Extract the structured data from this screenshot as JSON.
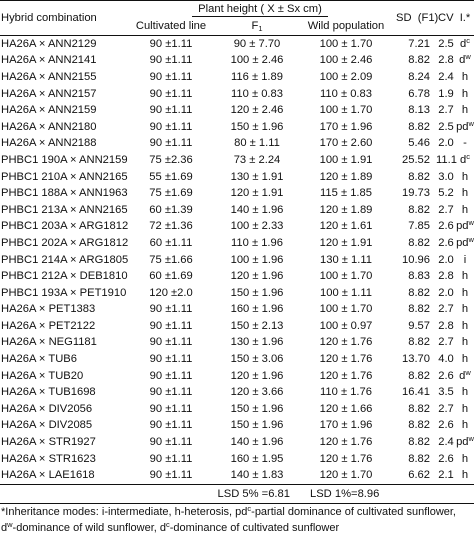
{
  "header": {
    "hybrid_combination": "Hybrid combination",
    "plant_height": "Plant  height ( X ± Sx cm)",
    "cultivated_line": "Cultivated  line",
    "f1_base": "F",
    "f1_sub": "1",
    "wild_population": "Wild  population",
    "sd": "SD",
    "sd_f1": "(F1)",
    "cv": "CV",
    "cv_f1": "(F1)",
    "inh": "I.*"
  },
  "rows": [
    {
      "hybrid": "HA26A × ANN2129",
      "cl": "90 ±1.11",
      "f1": "90 ± 7.70",
      "wp": "100 ± 1.70",
      "sd": "7.21",
      "cv": "2.5",
      "inh": "d",
      "inh_sup": "c"
    },
    {
      "hybrid": "HA26A × ANN2141",
      "cl": "90 ±1.11",
      "f1": "100 ± 2.46",
      "wp": "100 ± 2.46",
      "sd": "8.82",
      "cv": "2.8",
      "inh": "d",
      "inh_sup": "w"
    },
    {
      "hybrid": "HA26A × ANN2155",
      "cl": "90 ±1.11",
      "f1": "116 ± 1.89",
      "wp": "100 ± 2.09",
      "sd": "8.24",
      "cv": "2.4",
      "inh": "h",
      "inh_sup": ""
    },
    {
      "hybrid": "HA26A × ANN2157",
      "cl": "90 ±1.11",
      "f1": "110 ± 0.83",
      "wp": "110 ± 0.83",
      "sd": "6.78",
      "cv": "1.9",
      "inh": "h",
      "inh_sup": ""
    },
    {
      "hybrid": "HA26A × ANN2159",
      "cl": "90 ±1.11",
      "f1": "120 ± 2.46",
      "wp": "100 ± 1.70",
      "sd": "8.13",
      "cv": "2.7",
      "inh": "h",
      "inh_sup": ""
    },
    {
      "hybrid": "HA26A × ANN2180",
      "cl": "90 ±1.11",
      "f1": "150 ± 1.96",
      "wp": "170 ± 1.96",
      "sd": "8.82",
      "cv": "2.5",
      "inh": "pd",
      "inh_sup": "w"
    },
    {
      "hybrid": "HA26A × ANN2188",
      "cl": "90 ±1.11",
      "f1": "80 ± 1.11",
      "wp": "170 ± 2.60",
      "sd": "5.46",
      "cv": "2.0",
      "inh": "-",
      "inh_sup": ""
    },
    {
      "hybrid": "PHBC1 190A × ANN2159",
      "cl": "75 ±2.36",
      "f1": "73 ± 2.24",
      "wp": "100 ± 1.91",
      "sd": "25.52",
      "cv": "11.1",
      "inh": "d",
      "inh_sup": "c"
    },
    {
      "hybrid": "PHBC1 210A × ANN2165",
      "cl": "55 ±1.69",
      "f1": "130 ± 1.91",
      "wp": "120 ± 1.89",
      "sd": "8.82",
      "cv": "3.0",
      "inh": "h",
      "inh_sup": ""
    },
    {
      "hybrid": "PHBC1 188A × ANN1963",
      "cl": "75 ±1.69",
      "f1": "120 ± 1.91",
      "wp": "115 ± 1.85",
      "sd": "19.73",
      "cv": "5.2",
      "inh": "h",
      "inh_sup": ""
    },
    {
      "hybrid": "PHBC1 213A × ANN2165",
      "cl": "60 ±1.39",
      "f1": "140 ± 1.96",
      "wp": "120 ± 1.89",
      "sd": "8.82",
      "cv": "2.7",
      "inh": "h",
      "inh_sup": ""
    },
    {
      "hybrid": "PHBC1 203A × ARG1812",
      "cl": "72 ±1.36",
      "f1": "100 ± 2.33",
      "wp": "120 ± 1.61",
      "sd": "7.85",
      "cv": "2.6",
      "inh": "pd",
      "inh_sup": "w"
    },
    {
      "hybrid": "PHBC1 202A × ARG1812",
      "cl": "60 ±1.11",
      "f1": "110 ± 1.96",
      "wp": "120 ± 1.91",
      "sd": "8.82",
      "cv": "2.6",
      "inh": "pd",
      "inh_sup": "w"
    },
    {
      "hybrid": "PHBC1 214A × ARG1805",
      "cl": "75 ±1.66",
      "f1": "100 ± 1.96",
      "wp": "130 ± 1.11",
      "sd": "10.96",
      "cv": "2.0",
      "inh": "i",
      "inh_sup": ""
    },
    {
      "hybrid": "PHBC1 212A × DEB1810",
      "cl": "60 ±1.69",
      "f1": "120 ± 1.96",
      "wp": "100 ± 1.70",
      "sd": "8.83",
      "cv": "2.8",
      "inh": "h",
      "inh_sup": ""
    },
    {
      "hybrid": "PHBC1 193A × PET1910",
      "cl": "120 ±2.0",
      "f1": "150 ± 1.96",
      "wp": "100 ± 1.11",
      "sd": "8.82",
      "cv": "2.0",
      "inh": "h",
      "inh_sup": ""
    },
    {
      "hybrid": "HA26A × PET1383",
      "cl": "90 ±1.11",
      "f1": "160 ± 1.96",
      "wp": "100 ± 1.70",
      "sd": "8.82",
      "cv": "2.7",
      "inh": "h",
      "inh_sup": ""
    },
    {
      "hybrid": "HA26A × PET2122",
      "cl": "90 ±1.11",
      "f1": "150 ± 2.13",
      "wp": "100 ± 0.97",
      "sd": "9.57",
      "cv": "2.8",
      "inh": "h",
      "inh_sup": ""
    },
    {
      "hybrid": "HA26A × NEG1181",
      "cl": "90 ±1.11",
      "f1": "130 ± 1.96",
      "wp": "120 ± 1.76",
      "sd": "8.82",
      "cv": "2.7",
      "inh": "h",
      "inh_sup": ""
    },
    {
      "hybrid": "HA26A × TUB6",
      "cl": "90 ±1.11",
      "f1": "150 ± 3.06",
      "wp": "120 ± 1.76",
      "sd": "13.70",
      "cv": "4.0",
      "inh": "h",
      "inh_sup": ""
    },
    {
      "hybrid": "HA26A × TUB20",
      "cl": "90 ±1.11",
      "f1": "120 ± 1.96",
      "wp": "120 ± 1.76",
      "sd": "8.82",
      "cv": "2.6",
      "inh": "d",
      "inh_sup": "w"
    },
    {
      "hybrid": "HA26A × TUB1698",
      "cl": "90 ±1.11",
      "f1": "120 ± 3.66",
      "wp": "110 ± 1.76",
      "sd": "16.41",
      "cv": "3.5",
      "inh": "h",
      "inh_sup": ""
    },
    {
      "hybrid": "HA26A × DIV2056",
      "cl": "90 ±1.11",
      "f1": "150 ± 1.96",
      "wp": "120 ± 1.66",
      "sd": "8.82",
      "cv": "2.7",
      "inh": "h",
      "inh_sup": ""
    },
    {
      "hybrid": "HA26A × DIV2085",
      "cl": "90 ±1.11",
      "f1": "150 ± 1.96",
      "wp": "170 ± 1.96",
      "sd": "8.82",
      "cv": "2.6",
      "inh": "h",
      "inh_sup": ""
    },
    {
      "hybrid": "HA26A × STR1927",
      "cl": "90 ±1.11",
      "f1": "140 ± 1.96",
      "wp": "120 ± 1.76",
      "sd": "8.82",
      "cv": "2.4",
      "inh": "pd",
      "inh_sup": "w"
    },
    {
      "hybrid": "HA26A × STR1623",
      "cl": "90 ±1.11",
      "f1": "160 ± 1.95",
      "wp": "120 ± 1.76",
      "sd": "8.82",
      "cv": "2.6",
      "inh": "h",
      "inh_sup": ""
    },
    {
      "hybrid": "HA26A × LAE1618",
      "cl": "90 ±1.11",
      "f1": "140 ± 1.83",
      "wp": "120 ± 1.70",
      "sd": "6.62",
      "cv": "2.1",
      "inh": "h",
      "inh_sup": ""
    }
  ],
  "lsd": {
    "lsd5": "LSD 5%    =6.81",
    "lsd1": "LSD  1%=8.96"
  },
  "footnote": {
    "line1_a": "*Inheritance modes: i-intermediate,  h-heterosis, pd",
    "line1_sup": "c",
    "line1_b": "-partial  dominance of cultivated sunflower,",
    "line2_a": "d",
    "line2_sup": "w",
    "line2_b": "-dominance of wild  sunflower, d",
    "line2_sup2": "c",
    "line2_c": "-dominance  of cultivated sunflower"
  }
}
